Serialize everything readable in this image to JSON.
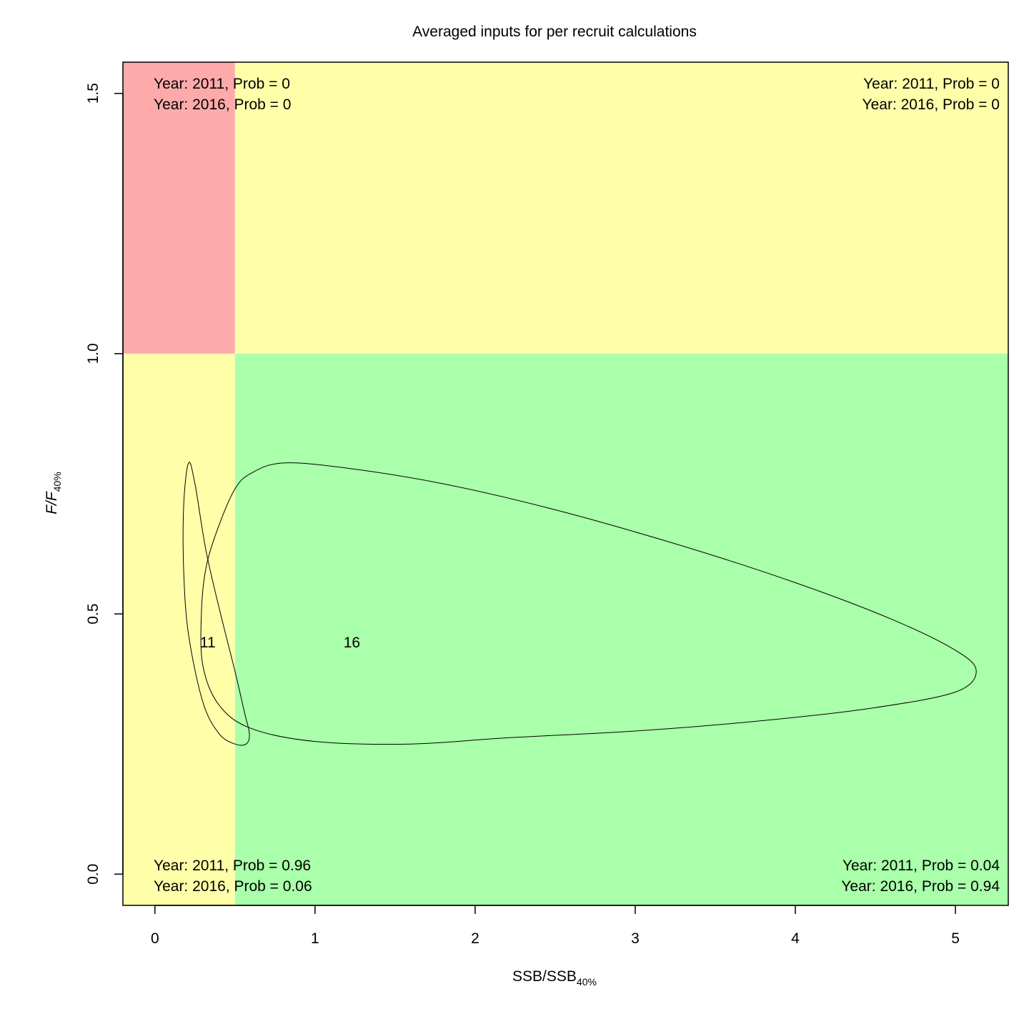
{
  "chart_data": {
    "type": "kobe-plot",
    "title": "Averaged inputs for per recruit calculations",
    "xlabel": "SSB/SSB",
    "xlabel_sub": "40%",
    "ylabel": "F/F",
    "ylabel_sub": "40%",
    "xlim": [
      -0.2,
      5.33
    ],
    "ylim": [
      -0.06,
      1.56
    ],
    "x_ticks": [
      0,
      1,
      2,
      3,
      4,
      5
    ],
    "x_tick_labels": [
      "0",
      "1",
      "2",
      "3",
      "4",
      "5"
    ],
    "y_ticks": [
      0.0,
      0.5,
      1.0,
      1.5
    ],
    "y_tick_labels": [
      "0.0",
      "0.5",
      "1.0",
      "1.5"
    ],
    "x_threshold": 0.5,
    "y_threshold": 1.0,
    "zone_colors": {
      "top_left": "#ffaaaa",
      "top_right": "#ffffaa",
      "bottom_left": "#ffffaa",
      "bottom_right": "#aaffaa"
    },
    "quadrant_annotations": {
      "top_left": [
        "Year: 2011, Prob = 0",
        "Year: 2016, Prob = 0"
      ],
      "top_right": [
        "Year: 2011, Prob = 0",
        "Year: 2016, Prob = 0"
      ],
      "bottom_left": [
        "Year: 2011, Prob = 0.96",
        "Year: 2016, Prob = 0.06"
      ],
      "bottom_right": [
        "Year: 2011, Prob = 0.04",
        "Year: 2016, Prob = 0.94"
      ]
    },
    "points": [
      {
        "label": "11",
        "x": 0.33,
        "y": 0.445
      },
      {
        "label": "16",
        "x": 1.23,
        "y": 0.445
      }
    ],
    "contours": [
      {
        "name": "2011",
        "x": [
          0.21,
          0.25,
          0.32,
          0.41,
          0.5,
          0.56,
          0.59,
          0.57,
          0.5,
          0.4,
          0.3,
          0.21,
          0.18,
          0.18,
          0.21
        ],
        "y": [
          0.79,
          0.75,
          0.62,
          0.5,
          0.39,
          0.31,
          0.27,
          0.25,
          0.25,
          0.27,
          0.33,
          0.46,
          0.58,
          0.71,
          0.79
        ]
      },
      {
        "name": "2016",
        "x": [
          0.5,
          0.6,
          0.8,
          1.2,
          1.8,
          2.5,
          3.3,
          4.0,
          4.6,
          5.0,
          5.13,
          5.0,
          4.5,
          3.8,
          3.0,
          2.2,
          1.6,
          1.0,
          0.6,
          0.4,
          0.3,
          0.29,
          0.32,
          0.4,
          0.5
        ],
        "y": [
          0.74,
          0.77,
          0.79,
          0.78,
          0.75,
          0.7,
          0.63,
          0.56,
          0.49,
          0.43,
          0.39,
          0.35,
          0.32,
          0.295,
          0.275,
          0.262,
          0.25,
          0.255,
          0.28,
          0.325,
          0.4,
          0.5,
          0.59,
          0.67,
          0.74
        ]
      }
    ]
  }
}
